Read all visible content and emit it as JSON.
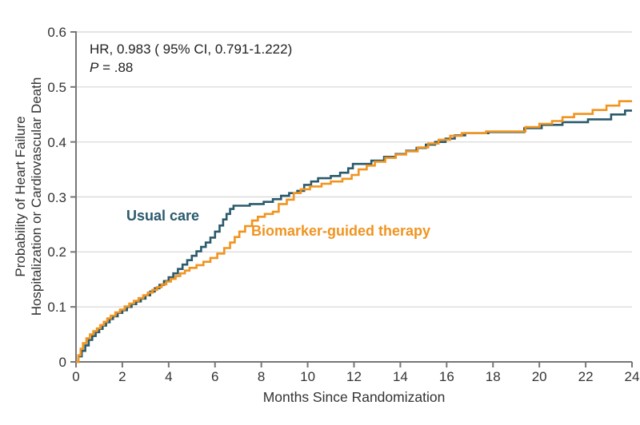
{
  "colors": {
    "usual_care": "#2A5A6C",
    "biomarker": "#F0941F",
    "grid": "#DCDCDC",
    "axis": "#767676",
    "text": "#2E2E2E"
  },
  "annotation": {
    "hr_line": "HR, 0.983 ( 95% CI, 0.791-1.222)",
    "p_symbol": "P",
    "p_rest": " = .88"
  },
  "chart_data": {
    "type": "line",
    "subtype": "kaplan-meier-step",
    "title": "",
    "xlabel": "Months Since Randomization",
    "ylabel_line1": "Probability of Heart Failure",
    "ylabel_line2": "Hospitalization or Cardiovascular Death",
    "xlim": [
      0,
      24
    ],
    "ylim": [
      0,
      0.6
    ],
    "xticks": [
      0,
      2,
      4,
      6,
      8,
      10,
      12,
      14,
      16,
      18,
      20,
      22,
      24
    ],
    "ytick_labels": [
      "0",
      "0.1",
      "0.2",
      "0.3",
      "0.4",
      "0.5",
      "0.6"
    ],
    "grid": "horizontal gridlines at every 0.1 including top border at 0.6",
    "legend_position": "inline labels beside curves",
    "series": [
      {
        "name": "Usual care",
        "color": "#2A5A6C",
        "points": [
          [
            0,
            0
          ],
          [
            0.1,
            0.01
          ],
          [
            0.25,
            0.02
          ],
          [
            0.4,
            0.03
          ],
          [
            0.55,
            0.04
          ],
          [
            0.7,
            0.047
          ],
          [
            0.85,
            0.054
          ],
          [
            1.0,
            0.06
          ],
          [
            1.15,
            0.066
          ],
          [
            1.3,
            0.072
          ],
          [
            1.45,
            0.078
          ],
          [
            1.6,
            0.083
          ],
          [
            1.8,
            0.089
          ],
          [
            2.0,
            0.094
          ],
          [
            2.2,
            0.1
          ],
          [
            2.4,
            0.105
          ],
          [
            2.6,
            0.11
          ],
          [
            2.8,
            0.115
          ],
          [
            3.0,
            0.121
          ],
          [
            3.2,
            0.128
          ],
          [
            3.4,
            0.134
          ],
          [
            3.6,
            0.14
          ],
          [
            3.8,
            0.147
          ],
          [
            4.0,
            0.154
          ],
          [
            4.2,
            0.161
          ],
          [
            4.4,
            0.169
          ],
          [
            4.6,
            0.177
          ],
          [
            4.8,
            0.185
          ],
          [
            5.0,
            0.193
          ],
          [
            5.2,
            0.201
          ],
          [
            5.4,
            0.209
          ],
          [
            5.6,
            0.217
          ],
          [
            5.8,
            0.226
          ],
          [
            6.0,
            0.237
          ],
          [
            6.2,
            0.248
          ],
          [
            6.35,
            0.259
          ],
          [
            6.5,
            0.269
          ],
          [
            6.65,
            0.278
          ],
          [
            6.8,
            0.284
          ],
          [
            7.5,
            0.287
          ],
          [
            8.1,
            0.291
          ],
          [
            8.5,
            0.296
          ],
          [
            8.85,
            0.302
          ],
          [
            9.2,
            0.307
          ],
          [
            9.55,
            0.311
          ],
          [
            9.85,
            0.322
          ],
          [
            10.15,
            0.328
          ],
          [
            10.45,
            0.334
          ],
          [
            11.0,
            0.338
          ],
          [
            11.4,
            0.344
          ],
          [
            11.75,
            0.352
          ],
          [
            11.95,
            0.36
          ],
          [
            12.75,
            0.366
          ],
          [
            13.3,
            0.373
          ],
          [
            13.8,
            0.378
          ],
          [
            14.25,
            0.384
          ],
          [
            14.7,
            0.389
          ],
          [
            15.1,
            0.395
          ],
          [
            15.5,
            0.4
          ],
          [
            15.95,
            0.406
          ],
          [
            16.35,
            0.412
          ],
          [
            16.8,
            0.416
          ],
          [
            17.8,
            0.418
          ],
          [
            19.35,
            0.425
          ],
          [
            20.1,
            0.431
          ],
          [
            21.0,
            0.436
          ],
          [
            22.1,
            0.441
          ],
          [
            23.1,
            0.45
          ],
          [
            23.7,
            0.457
          ],
          [
            24,
            0.457
          ]
        ]
      },
      {
        "name": "Biomarker-guided therapy",
        "color": "#F0941F",
        "points": [
          [
            0,
            0
          ],
          [
            0.1,
            0.012
          ],
          [
            0.2,
            0.024
          ],
          [
            0.3,
            0.034
          ],
          [
            0.45,
            0.043
          ],
          [
            0.6,
            0.05
          ],
          [
            0.75,
            0.056
          ],
          [
            0.9,
            0.061
          ],
          [
            1.05,
            0.067
          ],
          [
            1.2,
            0.073
          ],
          [
            1.35,
            0.079
          ],
          [
            1.5,
            0.084
          ],
          [
            1.7,
            0.09
          ],
          [
            1.9,
            0.095
          ],
          [
            2.1,
            0.101
          ],
          [
            2.3,
            0.106
          ],
          [
            2.5,
            0.111
          ],
          [
            2.7,
            0.116
          ],
          [
            2.9,
            0.121
          ],
          [
            3.1,
            0.126
          ],
          [
            3.3,
            0.131
          ],
          [
            3.5,
            0.136
          ],
          [
            3.7,
            0.141
          ],
          [
            3.9,
            0.146
          ],
          [
            4.1,
            0.151
          ],
          [
            4.3,
            0.156
          ],
          [
            4.5,
            0.161
          ],
          [
            4.7,
            0.166
          ],
          [
            4.9,
            0.171
          ],
          [
            5.2,
            0.176
          ],
          [
            5.5,
            0.182
          ],
          [
            5.8,
            0.189
          ],
          [
            6.1,
            0.197
          ],
          [
            6.4,
            0.207
          ],
          [
            6.65,
            0.217
          ],
          [
            6.85,
            0.227
          ],
          [
            7.05,
            0.237
          ],
          [
            7.3,
            0.247
          ],
          [
            7.6,
            0.257
          ],
          [
            7.85,
            0.264
          ],
          [
            8.15,
            0.269
          ],
          [
            8.5,
            0.273
          ],
          [
            8.75,
            0.287
          ],
          [
            9.1,
            0.295
          ],
          [
            9.4,
            0.307
          ],
          [
            9.7,
            0.314
          ],
          [
            10.1,
            0.319
          ],
          [
            10.6,
            0.324
          ],
          [
            11.0,
            0.328
          ],
          [
            11.5,
            0.333
          ],
          [
            11.9,
            0.34
          ],
          [
            12.2,
            0.35
          ],
          [
            12.55,
            0.357
          ],
          [
            12.9,
            0.364
          ],
          [
            13.35,
            0.371
          ],
          [
            13.8,
            0.377
          ],
          [
            14.25,
            0.383
          ],
          [
            14.75,
            0.39
          ],
          [
            15.2,
            0.397
          ],
          [
            15.65,
            0.404
          ],
          [
            16.15,
            0.411
          ],
          [
            16.65,
            0.416
          ],
          [
            17.7,
            0.419
          ],
          [
            19.4,
            0.427
          ],
          [
            20.0,
            0.433
          ],
          [
            20.55,
            0.438
          ],
          [
            21.0,
            0.445
          ],
          [
            21.5,
            0.451
          ],
          [
            22.3,
            0.458
          ],
          [
            22.9,
            0.466
          ],
          [
            23.45,
            0.474
          ],
          [
            24,
            0.474
          ]
        ]
      }
    ]
  }
}
